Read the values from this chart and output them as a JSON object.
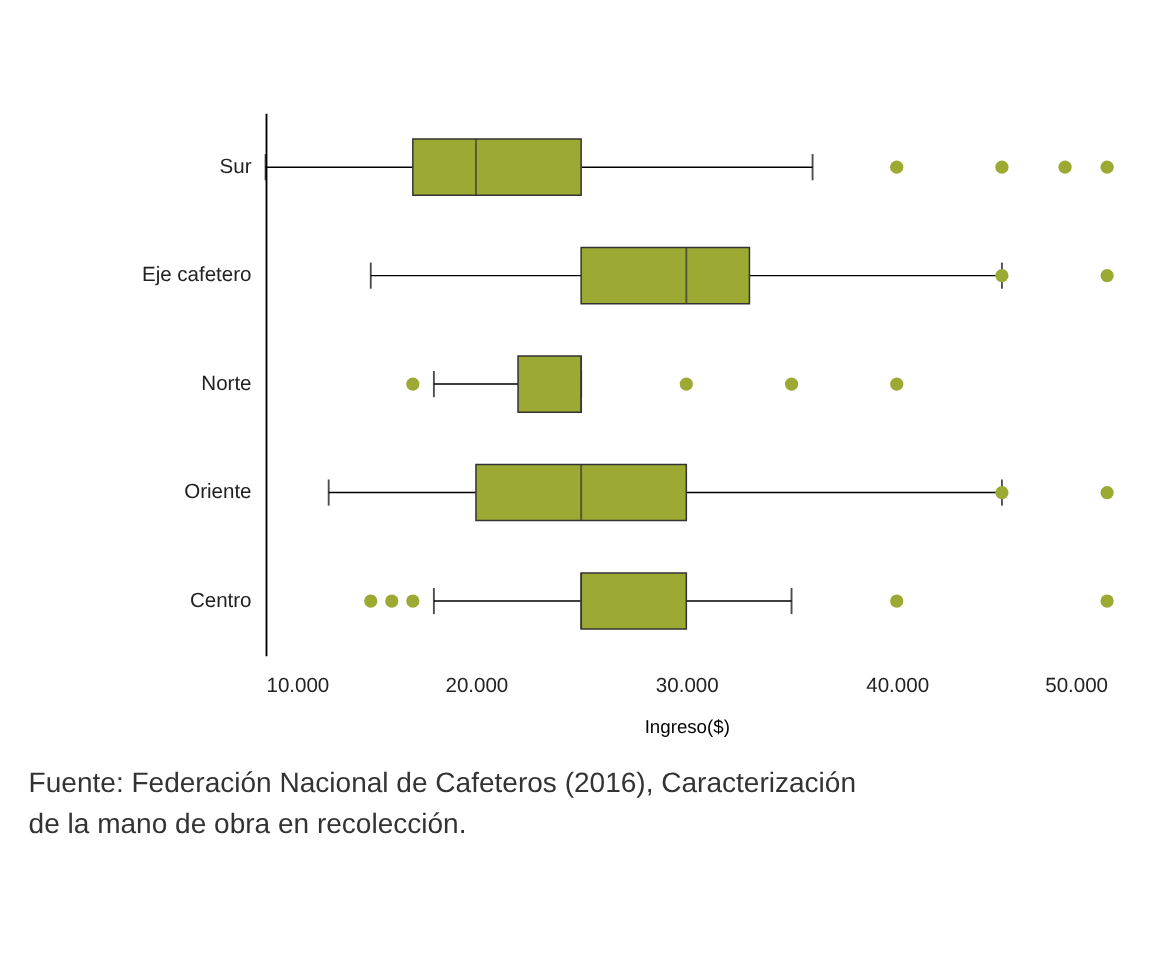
{
  "chart_data": {
    "type": "box",
    "orientation": "horizontal",
    "xlabel": "Ingreso($)",
    "categories": [
      "Sur",
      "Eje cafetero",
      "Norte",
      "Oriente",
      "Centro"
    ],
    "color": "#9caa34",
    "boxes": [
      {
        "low": 10000,
        "q1": 17000,
        "median": 20000,
        "q3": 25000,
        "high": 36000,
        "outliers": [
          40000,
          45000,
          48000,
          50000
        ]
      },
      {
        "low": 15000,
        "q1": 25000,
        "median": 30000,
        "q3": 33000,
        "high": 45000,
        "outliers": [
          45000,
          50000
        ]
      },
      {
        "low": 18000,
        "q1": 22000,
        "median": 25000,
        "q3": 25000,
        "high": 25000,
        "outliers": [
          17000,
          30000,
          35000,
          40000
        ]
      },
      {
        "low": 13000,
        "q1": 20000,
        "median": 25000,
        "q3": 30000,
        "high": 45000,
        "outliers": [
          45000,
          50000
        ]
      },
      {
        "low": 18000,
        "q1": 25000,
        "median": 25000,
        "q3": 30000,
        "high": 35000,
        "outliers": [
          15000,
          16000,
          17000,
          40000,
          50000
        ]
      }
    ],
    "xlim": [
      10000,
      50000
    ],
    "xticks": [
      {
        "value": 10000,
        "label": "10.000"
      },
      {
        "value": 20000,
        "label": "20.000"
      },
      {
        "value": 30000,
        "label": "30.000"
      },
      {
        "value": 40000,
        "label": "40.000"
      },
      {
        "value": 50000,
        "label": "50.000"
      }
    ],
    "grid": false,
    "annotations": [
      "Fuente: Federación Nacional de Cafeteros (2016), Caracterización de la mano de obra en recolección."
    ]
  }
}
